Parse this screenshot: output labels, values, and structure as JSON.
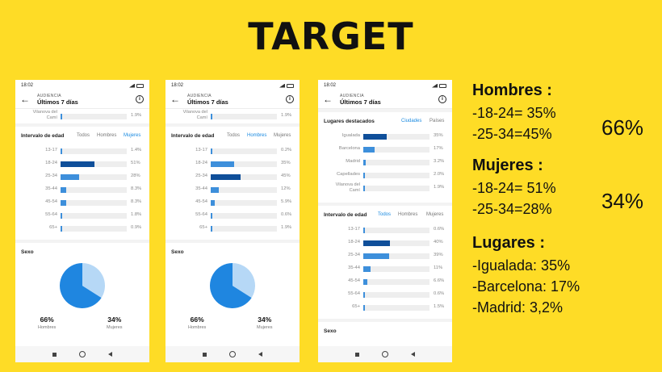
{
  "title": "TARGET",
  "colors": {
    "background": "#FEDC26",
    "bar_light": "#3d8fdb",
    "bar_dark": "#0f4f9a",
    "tab_active": "#1a8ae0",
    "pie_main": "#1f86e0",
    "pie_minor": "#b6d8f6"
  },
  "phones": [
    {
      "status_time": "18:02",
      "header_sub": "AUDIENCIA",
      "header_main": "Últimos 7 días",
      "partial_item": {
        "label": "Vilanova del Camí",
        "value": "1.9%"
      },
      "age_section": {
        "title": "Intervalo de edad",
        "tabs": [
          "Todos",
          "Hombres",
          "Mujeres"
        ],
        "active_tab": 2,
        "rows": [
          {
            "label": "13-17",
            "value": "1.4%",
            "fraction": 0.014
          },
          {
            "label": "18-24",
            "value": "51%",
            "fraction": 0.51,
            "dark": true
          },
          {
            "label": "25-34",
            "value": "28%",
            "fraction": 0.28
          },
          {
            "label": "35-44",
            "value": "8.3%",
            "fraction": 0.083
          },
          {
            "label": "45-54",
            "value": "8.3%",
            "fraction": 0.083
          },
          {
            "label": "55-64",
            "value": "1.8%",
            "fraction": 0.018
          },
          {
            "label": "65+",
            "value": "0.9%",
            "fraction": 0.009
          }
        ]
      },
      "sex_section": {
        "title": "Sexo",
        "male_value": "66%",
        "male_label": "Hombres",
        "female_value": "34%",
        "female_label": "Mujeres"
      }
    },
    {
      "status_time": "18:02",
      "header_sub": "AUDIENCIA",
      "header_main": "Últimos 7 días",
      "partial_item": {
        "label": "Vilanova del Camí",
        "value": "1.9%"
      },
      "age_section": {
        "title": "Intervalo de edad",
        "tabs": [
          "Todos",
          "Hombres",
          "Mujeres"
        ],
        "active_tab": 1,
        "rows": [
          {
            "label": "13-17",
            "value": "0.2%",
            "fraction": 0.002
          },
          {
            "label": "18-24",
            "value": "35%",
            "fraction": 0.35
          },
          {
            "label": "25-34",
            "value": "45%",
            "fraction": 0.45,
            "dark": true
          },
          {
            "label": "35-44",
            "value": "12%",
            "fraction": 0.12
          },
          {
            "label": "45-54",
            "value": "5.9%",
            "fraction": 0.059
          },
          {
            "label": "55-64",
            "value": "0.6%",
            "fraction": 0.006
          },
          {
            "label": "65+",
            "value": "1.9%",
            "fraction": 0.019
          }
        ]
      },
      "sex_section": {
        "title": "Sexo",
        "male_value": "66%",
        "male_label": "Hombres",
        "female_value": "34%",
        "female_label": "Mujeres"
      }
    },
    {
      "status_time": "18:02",
      "header_sub": "AUDIENCIA",
      "header_main": "Últimos 7 días",
      "places_section": {
        "title": "Lugares destacados",
        "tabs": [
          "Ciudades",
          "Países"
        ],
        "rows": [
          {
            "label": "Igualada",
            "value": "35%",
            "fraction": 0.35,
            "dark": true
          },
          {
            "label": "Barcelona",
            "value": "17%",
            "fraction": 0.17
          },
          {
            "label": "Madrid",
            "value": "3.2%",
            "fraction": 0.032
          },
          {
            "label": "Capellades",
            "value": "2.0%",
            "fraction": 0.02
          },
          {
            "label": "Vilanova del Camí",
            "value": "1.9%",
            "fraction": 0.019
          }
        ]
      },
      "age_section": {
        "title": "Intervalo de edad",
        "tabs": [
          "Todos",
          "Hombres",
          "Mujeres"
        ],
        "active_tab": 0,
        "rows": [
          {
            "label": "13-17",
            "value": "0.6%",
            "fraction": 0.006
          },
          {
            "label": "18-24",
            "value": "40%",
            "fraction": 0.4,
            "dark": true
          },
          {
            "label": "25-34",
            "value": "39%",
            "fraction": 0.39
          },
          {
            "label": "35-44",
            "value": "11%",
            "fraction": 0.11
          },
          {
            "label": "45-54",
            "value": "6.6%",
            "fraction": 0.066
          },
          {
            "label": "55-64",
            "value": "0.6%",
            "fraction": 0.006
          },
          {
            "label": "65+",
            "value": "1.5%",
            "fraction": 0.015
          }
        ]
      },
      "sex_title": "Sexo"
    }
  ],
  "notes": {
    "hombres_title": "Hombres :",
    "hombres_lines": [
      "-18-24= 35%",
      "-25-34=45%"
    ],
    "hombres_big": "66%",
    "mujeres_title": "Mujeres :",
    "mujeres_lines": [
      "-18-24= 51%",
      "-25-34=28%"
    ],
    "mujeres_big": "34%",
    "lugares_title": "Lugares :",
    "lugares_lines": [
      "-Igualada: 35%",
      "-Barcelona: 17%",
      "-Madrid: 3,2%"
    ]
  }
}
